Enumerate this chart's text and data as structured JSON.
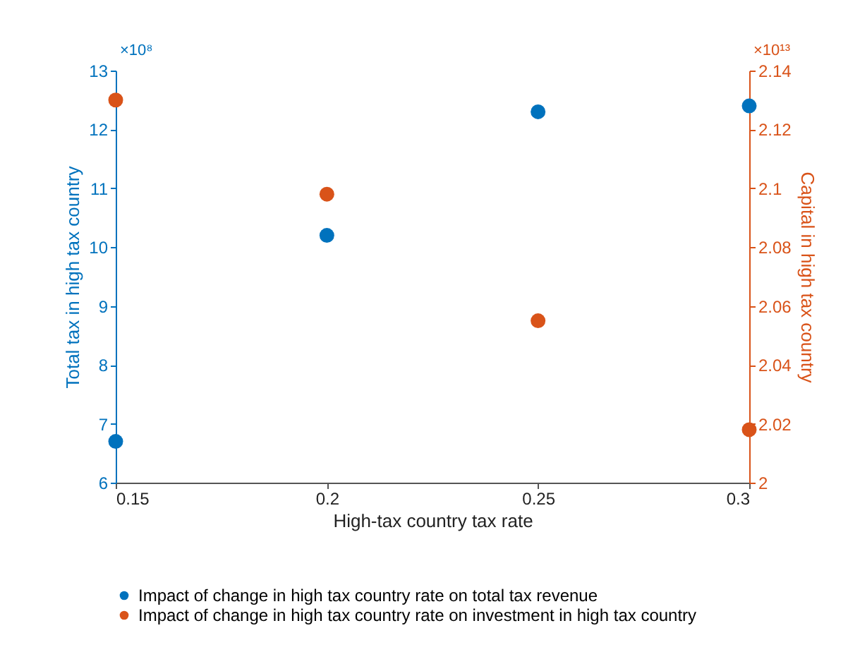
{
  "chart_data": {
    "type": "scatter",
    "xlabel": "High-tax country tax rate",
    "ylabel": "Total tax in high tax country",
    "y2label": "Capital in high tax country",
    "x": [
      0.15,
      0.2,
      0.25,
      0.3
    ],
    "series": [
      {
        "name": "Impact of change in high tax country rate on total tax revenue",
        "color": "#0072bd",
        "values": [
          6.7,
          10.2,
          12.3,
          12.4
        ]
      },
      {
        "name": "Impact of change in high tax country rate on investment in high tax country",
        "color": "#d95319",
        "axis": "y2",
        "values": [
          2.13,
          2.098,
          2.055,
          2.018
        ]
      }
    ],
    "xlim": [
      0.15,
      0.3
    ],
    "xticks": [
      0.15,
      0.2,
      0.25,
      0.3
    ],
    "ylim": [
      6,
      13
    ],
    "yticks": [
      6,
      7,
      8,
      9,
      10,
      11,
      12,
      13
    ],
    "y2lim": [
      2,
      2.14
    ],
    "y2ticks": [
      2,
      2.02,
      2.04,
      2.06,
      2.08,
      2.1,
      2.12,
      2.14
    ],
    "annotations": [
      "×10⁸",
      "×10¹³"
    ],
    "marker": "circle",
    "legend": "bottom",
    "grid": false
  }
}
